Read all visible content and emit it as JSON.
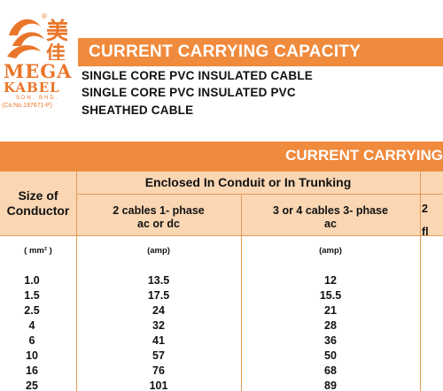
{
  "brand": {
    "name_line1": "MEGA",
    "name_line2": "KABEL",
    "suffix": "SDN. BHD.",
    "company_no": "(Co.No.197671-P)",
    "registered_mark": "®",
    "colors": {
      "accent": "#f08a3c",
      "header_fill": "#fad6b3",
      "logo": "#e9762b"
    }
  },
  "header": {
    "title": "CURRENT CARRYING CAPACITY",
    "subtitle_lines": [
      "SINGLE CORE PVC INSULATED CABLE",
      "SINGLE CORE PVC INSULATED PVC",
      "SHEATHED CABLE"
    ]
  },
  "table": {
    "banner": "CURRENT CARRYING",
    "size_header_line1": "Size of",
    "size_header_line2": "Conductor",
    "group_header": "Enclosed In Conduit or In Trunking",
    "col1_line1": "2 cables 1- phase",
    "col1_line2": "ac or dc",
    "col2_line1": "3 or 4 cables 3- phase",
    "col2_line2": "ac",
    "col3_partial_line1": "2",
    "col3_partial_line2": "fl",
    "units": {
      "size": "( mm² )",
      "col1": "(amp)",
      "col2": "(amp)"
    },
    "rows": [
      {
        "size": "1.0",
        "col1": "13.5",
        "col2": "12"
      },
      {
        "size": "1.5",
        "col1": "17.5",
        "col2": "15.5"
      },
      {
        "size": "2.5",
        "col1": "24",
        "col2": "21"
      },
      {
        "size": "4",
        "col1": "32",
        "col2": "28"
      },
      {
        "size": "6",
        "col1": "41",
        "col2": "36"
      },
      {
        "size": "10",
        "col1": "57",
        "col2": "50"
      },
      {
        "size": "16",
        "col1": "76",
        "col2": "68"
      },
      {
        "size": "25",
        "col1": "101",
        "col2": "89"
      }
    ]
  }
}
